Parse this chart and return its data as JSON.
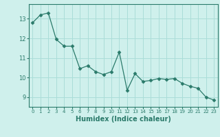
{
  "x": [
    0,
    1,
    2,
    3,
    4,
    5,
    6,
    7,
    8,
    9,
    10,
    11,
    12,
    13,
    14,
    15,
    16,
    17,
    18,
    19,
    20,
    21,
    22,
    23
  ],
  "y": [
    12.8,
    13.2,
    13.3,
    11.95,
    11.6,
    11.6,
    10.45,
    10.6,
    10.3,
    10.15,
    10.3,
    11.3,
    9.35,
    10.2,
    9.8,
    9.85,
    9.95,
    9.9,
    9.95,
    9.7,
    9.55,
    9.45,
    9.0,
    8.85
  ],
  "line_color": "#2a7a6a",
  "marker": "D",
  "marker_size": 2.5,
  "bg_color": "#cff0ec",
  "grid_color": "#aaddd8",
  "axis_color": "#2a7a6a",
  "tick_color": "#2a7a6a",
  "xlabel": "Humidex (Indice chaleur)",
  "xlabel_fontsize": 7,
  "ylabel_ticks": [
    9,
    10,
    11,
    12,
    13
  ],
  "xtick_labels": [
    "0",
    "1",
    "2",
    "3",
    "4",
    "5",
    "6",
    "7",
    "8",
    "9",
    "10",
    "11",
    "12",
    "13",
    "14",
    "15",
    "16",
    "17",
    "18",
    "19",
    "20",
    "21",
    "22",
    "23"
  ],
  "xlim": [
    -0.5,
    23.5
  ],
  "ylim": [
    8.5,
    13.75
  ]
}
